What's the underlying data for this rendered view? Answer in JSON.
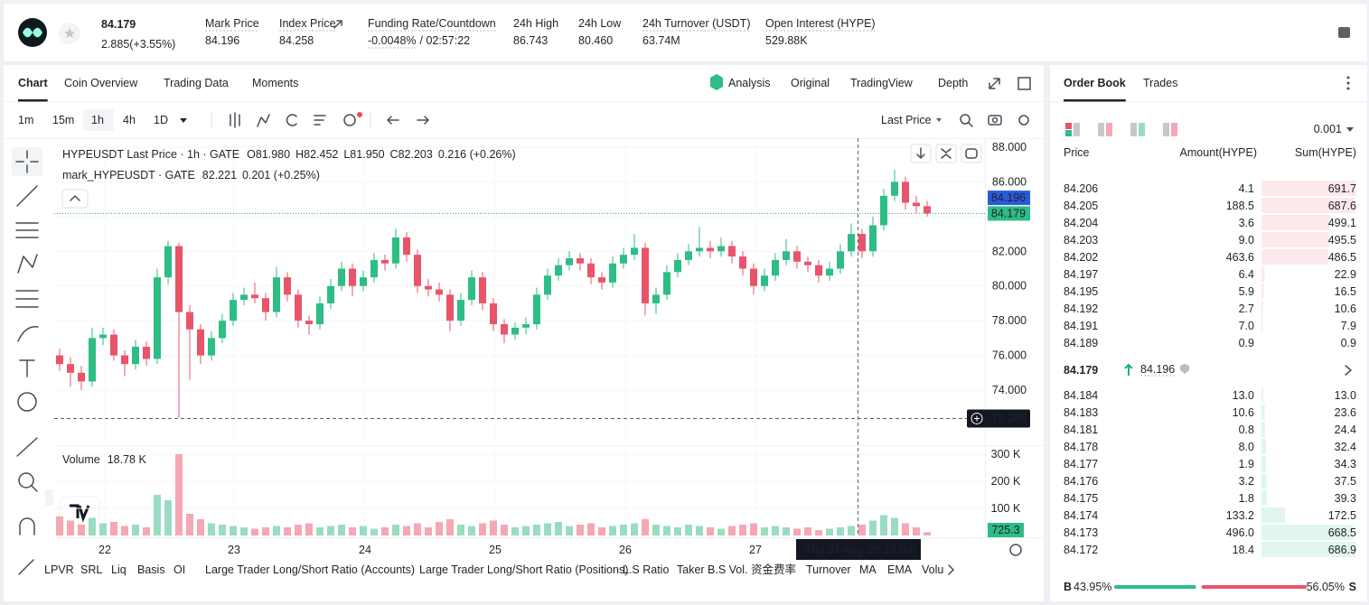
{
  "header": {
    "price": "84.179",
    "change": "2.885(+3.55%)",
    "stats": [
      {
        "label": "Mark Price",
        "value": "84.196"
      },
      {
        "label": "Index Price",
        "value": "84.258"
      },
      {
        "label": "Funding Rate/Countdown",
        "value": "-0.0048%",
        "countdown": "/ 02:57:22"
      },
      {
        "label": "24h High",
        "value": "86.743"
      },
      {
        "label": "24h Low",
        "value": "80.460"
      },
      {
        "label": "24h Turnover (USDT)",
        "value": "63.74M"
      },
      {
        "label": "Open Interest (HYPE)",
        "value": "529.88K"
      }
    ]
  },
  "tabs": [
    "Chart",
    "Coin Overview",
    "Trading Data",
    "Moments"
  ],
  "views": [
    "Analysis",
    "Original",
    "TradingView",
    "Depth"
  ],
  "intervals": [
    "1m",
    "15m",
    "1h",
    "4h",
    "1D"
  ],
  "price_type": "Last Price",
  "chart_data": {
    "type": "candlestick",
    "title": "HYPEUSDT Last Price · 1h · GATE",
    "ohlc_legend": [
      "O81.980",
      "H82.452",
      "L81.950",
      "C82.203",
      "0.216 (+0.26%)"
    ],
    "mark_legend": {
      "name": "mark_HYPEUSDT · GATE",
      "value": "82.221",
      "change": "0.201 (+0.25%)"
    },
    "up_color": "#2ebd85",
    "down_color": "#e8546a",
    "vol_up_color": "#9adcc3",
    "vol_down_color": "#f5a7b4",
    "ylim": [
      70.88,
      88.52
    ],
    "yticks": [
      {
        "value": 88,
        "label": "88.000"
      },
      {
        "value": 86,
        "label": "86.000"
      },
      {
        "value": 84,
        "label": "84.000"
      },
      {
        "value": 82,
        "label": "82.000"
      },
      {
        "value": 80,
        "label": "80.000"
      },
      {
        "value": 78,
        "label": "78.000"
      },
      {
        "value": 76,
        "label": "76.000"
      },
      {
        "value": 74,
        "label": "74.000"
      }
    ],
    "vlim": [
      0,
      326.7
    ],
    "vticks": [
      {
        "value": 300,
        "label": "300 K"
      },
      {
        "value": 200,
        "label": "200 K"
      },
      {
        "value": 100,
        "label": "100 K"
      }
    ],
    "xtick_labels": [
      "22",
      "23",
      "24",
      "25",
      "26",
      "27"
    ],
    "candles": [
      [
        76.0,
        76.4,
        75.1,
        75.5
      ],
      [
        75.5,
        75.9,
        74.2,
        75.0
      ],
      [
        75.0,
        75.4,
        74.0,
        74.5
      ],
      [
        74.5,
        77.6,
        74.2,
        77.0
      ],
      [
        77.0,
        77.6,
        76.6,
        77.2
      ],
      [
        77.2,
        77.5,
        75.7,
        76.0
      ],
      [
        76.0,
        76.3,
        74.8,
        75.5
      ],
      [
        75.5,
        76.9,
        75.2,
        76.5
      ],
      [
        76.5,
        76.8,
        75.4,
        75.8
      ],
      [
        75.8,
        81.0,
        75.5,
        80.5
      ],
      [
        80.5,
        82.6,
        80.1,
        82.3
      ],
      [
        82.3,
        82.5,
        72.4,
        78.5
      ],
      [
        78.5,
        78.9,
        74.6,
        77.5
      ],
      [
        77.5,
        77.8,
        75.5,
        76.0
      ],
      [
        76.0,
        77.4,
        75.7,
        77.0
      ],
      [
        77.0,
        78.4,
        76.7,
        78.0
      ],
      [
        78.0,
        79.6,
        77.7,
        79.2
      ],
      [
        79.2,
        79.9,
        78.9,
        79.5
      ],
      [
        79.5,
        80.2,
        79.0,
        79.3
      ],
      [
        79.3,
        79.6,
        78.0,
        78.5
      ],
      [
        78.5,
        81.1,
        78.2,
        80.5
      ],
      [
        80.5,
        80.8,
        79.1,
        79.5
      ],
      [
        79.5,
        79.8,
        77.6,
        78.0
      ],
      [
        78.0,
        78.3,
        77.2,
        77.8
      ],
      [
        77.8,
        79.4,
        77.5,
        79.0
      ],
      [
        79.0,
        80.4,
        78.7,
        80.0
      ],
      [
        80.0,
        81.4,
        79.7,
        81.0
      ],
      [
        81.0,
        81.3,
        79.4,
        80.0
      ],
      [
        80.0,
        80.9,
        79.7,
        80.5
      ],
      [
        80.5,
        81.9,
        80.2,
        81.5
      ],
      [
        81.5,
        81.8,
        80.9,
        81.3
      ],
      [
        81.3,
        83.3,
        81.0,
        82.8
      ],
      [
        82.8,
        83.1,
        81.4,
        81.8
      ],
      [
        81.8,
        82.1,
        79.6,
        80.0
      ],
      [
        80.0,
        80.4,
        79.4,
        79.8
      ],
      [
        79.8,
        80.2,
        79.1,
        79.5
      ],
      [
        79.5,
        79.8,
        77.4,
        78.0
      ],
      [
        78.0,
        79.6,
        77.7,
        79.2
      ],
      [
        79.2,
        80.9,
        78.9,
        80.5
      ],
      [
        80.5,
        80.8,
        78.6,
        79.0
      ],
      [
        79.0,
        79.3,
        77.4,
        77.8
      ],
      [
        77.8,
        78.1,
        76.7,
        77.2
      ],
      [
        77.2,
        77.9,
        76.9,
        77.6
      ],
      [
        77.6,
        78.2,
        77.2,
        77.8
      ],
      [
        77.8,
        79.9,
        77.5,
        79.5
      ],
      [
        79.5,
        81.0,
        79.2,
        80.6
      ],
      [
        80.6,
        81.6,
        80.3,
        81.2
      ],
      [
        81.2,
        82.0,
        80.9,
        81.6
      ],
      [
        81.6,
        81.9,
        80.9,
        81.3
      ],
      [
        81.3,
        81.6,
        80.1,
        80.5
      ],
      [
        80.5,
        80.8,
        79.8,
        80.2
      ],
      [
        80.2,
        81.7,
        79.9,
        81.3
      ],
      [
        81.3,
        82.2,
        81.0,
        81.8
      ],
      [
        81.8,
        83.0,
        81.5,
        82.2
      ],
      [
        82.2,
        82.5,
        78.3,
        79.0
      ],
      [
        79.0,
        79.9,
        78.4,
        79.5
      ],
      [
        79.5,
        81.2,
        79.2,
        80.8
      ],
      [
        80.8,
        81.9,
        80.5,
        81.5
      ],
      [
        81.5,
        82.4,
        81.2,
        82.0
      ],
      [
        82.0,
        83.4,
        81.7,
        82.2
      ],
      [
        82.2,
        82.6,
        81.6,
        82.0
      ],
      [
        82.0,
        82.8,
        81.7,
        82.3
      ],
      [
        82.3,
        82.6,
        81.3,
        81.7
      ],
      [
        81.7,
        82.0,
        80.6,
        81.0
      ],
      [
        81.0,
        81.3,
        79.5,
        80.0
      ],
      [
        80.0,
        81.0,
        79.7,
        80.6
      ],
      [
        80.6,
        81.9,
        80.3,
        81.5
      ],
      [
        81.5,
        82.7,
        81.2,
        82.0
      ],
      [
        82.0,
        82.3,
        81.0,
        81.4
      ],
      [
        81.4,
        81.7,
        80.8,
        81.2
      ],
      [
        81.2,
        81.5,
        80.2,
        80.6
      ],
      [
        80.6,
        81.4,
        80.3,
        81.0
      ],
      [
        81.0,
        82.4,
        80.7,
        82.0
      ],
      [
        82.0,
        83.6,
        81.7,
        83.0
      ],
      [
        83.0,
        83.3,
        81.6,
        82.0
      ],
      [
        82.0,
        84.0,
        81.7,
        83.5
      ],
      [
        83.5,
        85.6,
        83.2,
        85.2
      ],
      [
        85.2,
        86.7,
        84.9,
        86.0
      ],
      [
        86.0,
        86.3,
        84.4,
        84.8
      ],
      [
        84.8,
        85.2,
        84.2,
        84.6
      ],
      [
        84.6,
        84.9,
        84.0,
        84.179
      ]
    ],
    "volumes": [
      70,
      55,
      40,
      65,
      45,
      50,
      35,
      40,
      30,
      150,
      130,
      300,
      80,
      60,
      45,
      40,
      35,
      30,
      25,
      30,
      35,
      30,
      40,
      45,
      30,
      35,
      40,
      30,
      35,
      25,
      30,
      40,
      35,
      45,
      30,
      50,
      60,
      40,
      35,
      45,
      55,
      40,
      30,
      35,
      40,
      45,
      50,
      35,
      40,
      45,
      30,
      35,
      40,
      45,
      60,
      40,
      35,
      30,
      40,
      35,
      30,
      25,
      35,
      40,
      45,
      30,
      35,
      30,
      25,
      30,
      20,
      25,
      30,
      35,
      40,
      55,
      75,
      65,
      45,
      30,
      12
    ],
    "volume_label": "Volume",
    "volume_value": "18.78 K",
    "last_volume": "725.3",
    "last_price": 84.179,
    "mark_price": 84.196,
    "crosshair_price": 72.366,
    "crosshair_time": "Thu 27 Aug '26   19:00"
  },
  "indicators": [
    "LPVR",
    "SRL",
    "Liq",
    "Basis",
    "OI",
    "Large Trader Long/Short Ratio (Accounts)",
    "Large Trader Long/Short Ratio (Positions)",
    "L.S Ratio",
    "Taker B.S Vol.",
    "资金费率",
    "Turnover",
    "MA",
    "EMA",
    "Volu"
  ],
  "order_book": {
    "tabs": [
      "Order Book",
      "Trades"
    ],
    "tick_size": "0.001",
    "columns": [
      "Price",
      "Amount(HYPE)",
      "Sum(HYPE)"
    ],
    "asks": [
      [
        84.206,
        4.1,
        691.7
      ],
      [
        84.205,
        188.5,
        687.6
      ],
      [
        84.204,
        3.6,
        499.1
      ],
      [
        84.203,
        {
          "value": 9,
          "label": "9.0"
        },
        495.5
      ],
      [
        84.202,
        463.6,
        486.5
      ],
      [
        84.197,
        6.4,
        22.9
      ],
      [
        84.195,
        5.9,
        16.5
      ],
      [
        84.192,
        2.7,
        10.6
      ],
      [
        84.191,
        {
          "value": 7,
          "label": "7.0"
        },
        7.9
      ],
      [
        84.189,
        0.9,
        0.9
      ]
    ],
    "last": 84.179,
    "mark": 84.196,
    "bids": [
      [
        84.184,
        {
          "value": 13,
          "label": "13.0"
        },
        {
          "value": 13,
          "label": "13.0"
        }
      ],
      [
        84.183,
        10.6,
        23.6
      ],
      [
        84.181,
        0.8,
        24.4
      ],
      [
        84.178,
        {
          "value": 8,
          "label": "8.0"
        },
        32.4
      ],
      [
        84.177,
        1.9,
        34.3
      ],
      [
        84.176,
        3.2,
        37.5
      ],
      [
        84.175,
        1.8,
        39.3
      ],
      [
        84.174,
        133.2,
        172.5
      ],
      [
        84.173,
        {
          "value": 496,
          "label": "496.0"
        },
        668.5
      ],
      [
        84.172,
        18.4,
        686.9
      ]
    ],
    "buy_letter": "B",
    "sell_letter": "S",
    "buy_ratio": {
      "value": 43.95,
      "label": "43.95%"
    },
    "sell_ratio": {
      "value": 56.05,
      "label": "56.05%"
    }
  }
}
